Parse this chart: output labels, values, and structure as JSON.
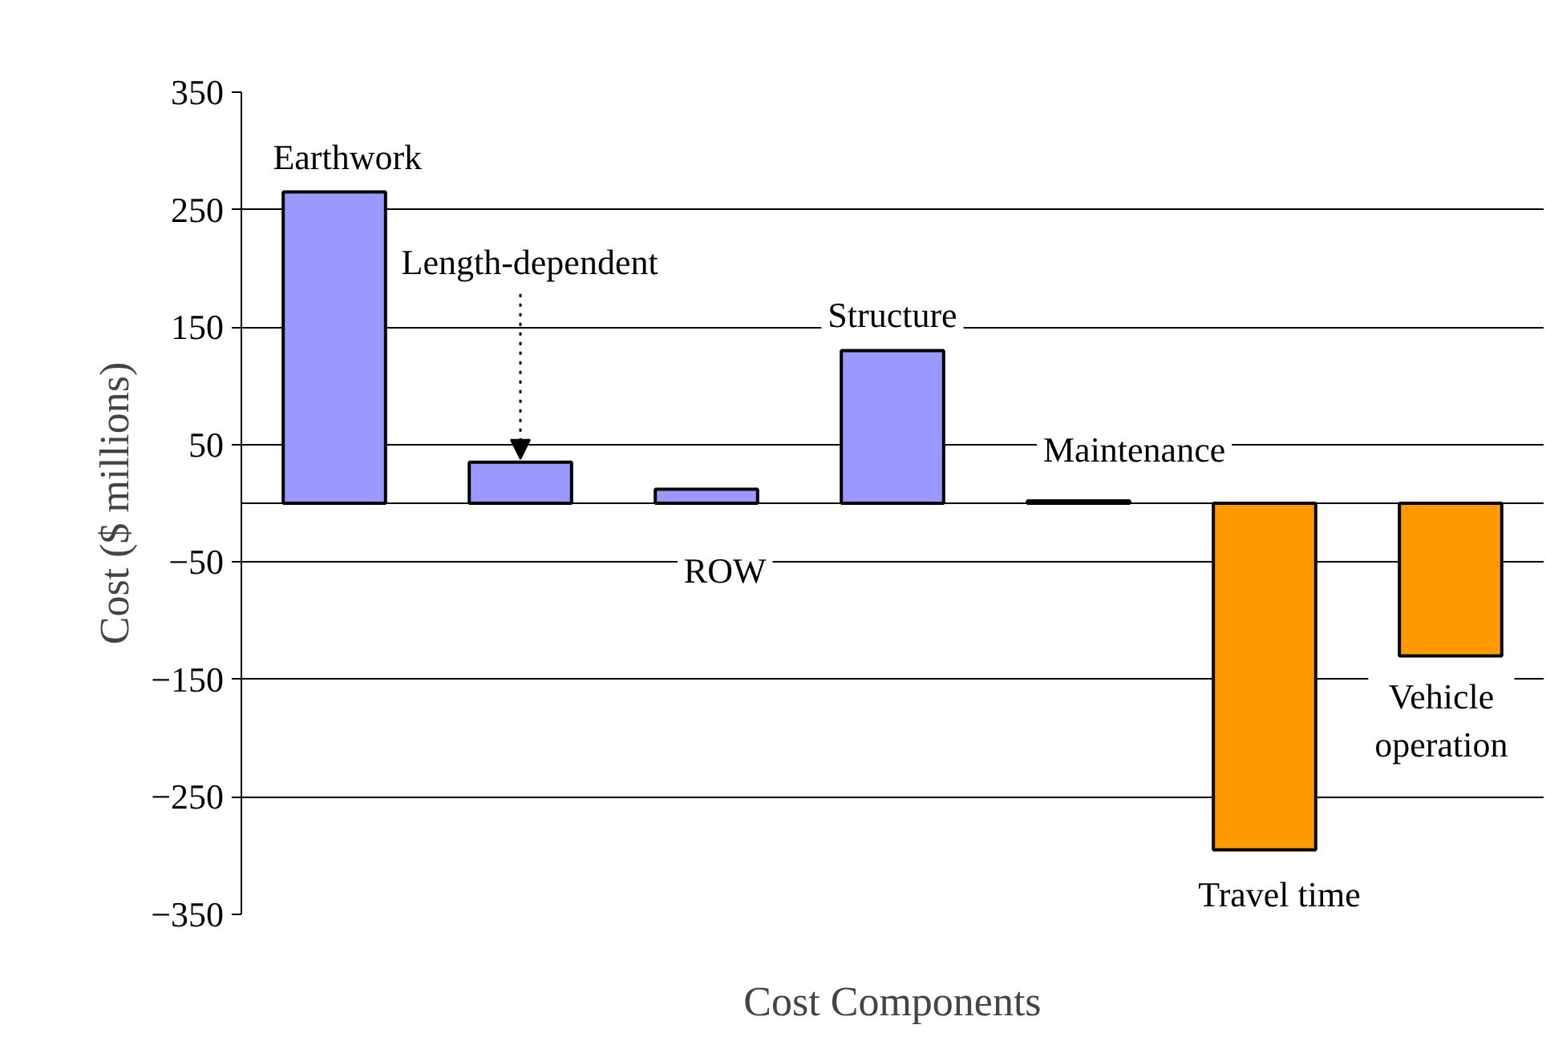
{
  "chart_data": {
    "type": "bar",
    "xlabel": "Cost Components",
    "ylabel": "Cost ($ millions)",
    "categories": [
      "Earthwork",
      "Length-dependent",
      "ROW",
      "Structure",
      "Maintenance",
      "Travel time",
      "Vehicle operation"
    ],
    "values": [
      265,
      35,
      12,
      130,
      2,
      -295,
      -130
    ],
    "colors": [
      "#9999ff",
      "#9999ff",
      "#9999ff",
      "#9999ff",
      "#9999ff",
      "#ff9900",
      "#ff9900"
    ],
    "ylim": [
      -350,
      350
    ],
    "yticks": [
      -350,
      -250,
      -150,
      -50,
      50,
      150,
      250,
      350
    ],
    "grid": "y"
  }
}
